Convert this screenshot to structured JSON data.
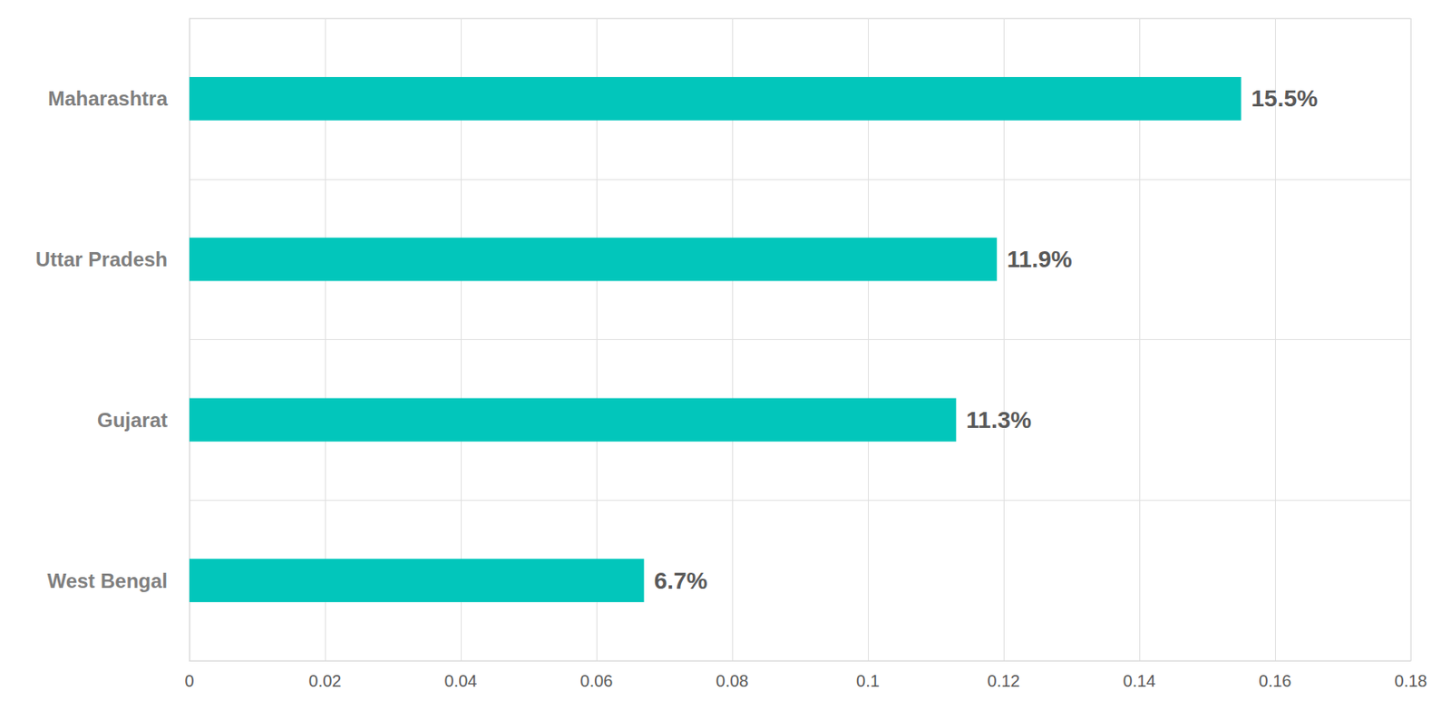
{
  "chart_data": {
    "type": "bar",
    "orientation": "horizontal",
    "categories": [
      "Maharashtra",
      "Uttar Pradesh",
      "Gujarat",
      "West Bengal"
    ],
    "values": [
      0.155,
      0.119,
      0.113,
      0.067
    ],
    "value_labels": [
      "15.5%",
      "11.9%",
      "11.3%",
      "6.7%"
    ],
    "data_labels": true,
    "color": "#02c6bb",
    "xlim": [
      0,
      0.18
    ],
    "xticks": [
      0,
      0.02,
      0.04,
      0.06,
      0.08,
      0.1,
      0.12,
      0.14,
      0.16,
      0.18
    ],
    "grid": true
  }
}
